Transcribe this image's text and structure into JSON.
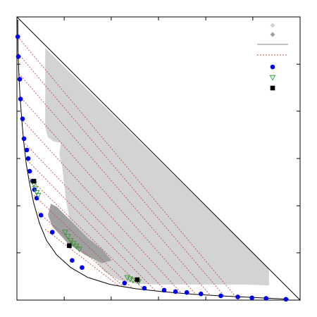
{
  "chart_data": {
    "type": "scatter",
    "xlim": [
      0,
      1
    ],
    "ylim": [
      0,
      1
    ],
    "grid": false,
    "legend_position": "top-right",
    "colors": {
      "light_region": "#d3d3d3",
      "dark_region": "#a0a0a0",
      "binodal": "#000000",
      "tie_line": "#c0504d",
      "circle_marker": "#0000ee",
      "triangle_marker": "#2e9b2e",
      "square_marker": "#000000"
    },
    "x_ticks": [
      0,
      0.167,
      0.333,
      0.5,
      0.667,
      0.833,
      1
    ],
    "y_ticks": [
      0,
      0.167,
      0.333,
      0.5,
      0.667,
      0.833,
      1
    ],
    "triangle_boundary": [
      [
        0,
        1
      ],
      [
        1,
        0
      ],
      [
        0,
        0
      ]
    ],
    "light_region": [
      [
        0.1,
        0.89
      ],
      [
        0.1,
        0.61
      ],
      [
        0.11,
        0.575
      ],
      [
        0.13,
        0.56
      ],
      [
        0.155,
        0.555
      ],
      [
        0.15,
        0.515
      ],
      [
        0.16,
        0.47
      ],
      [
        0.172,
        0.365
      ],
      [
        0.19,
        0.26
      ],
      [
        0.24,
        0.18
      ],
      [
        0.31,
        0.1
      ],
      [
        0.36,
        0.07
      ],
      [
        0.42,
        0.058
      ],
      [
        0.5,
        0.055
      ],
      [
        0.6,
        0.055
      ],
      [
        0.7,
        0.055
      ],
      [
        0.8,
        0.055
      ],
      [
        0.89,
        0.052
      ],
      [
        0.89,
        0.11
      ],
      [
        0.1,
        0.89
      ]
    ],
    "dark_region": [
      [
        0.12,
        0.34
      ],
      [
        0.14,
        0.33
      ],
      [
        0.19,
        0.28
      ],
      [
        0.25,
        0.22
      ],
      [
        0.3,
        0.18
      ],
      [
        0.335,
        0.14
      ],
      [
        0.3,
        0.13
      ],
      [
        0.24,
        0.16
      ],
      [
        0.18,
        0.2
      ],
      [
        0.125,
        0.26
      ],
      [
        0.11,
        0.3
      ],
      [
        0.12,
        0.34
      ]
    ],
    "binodal": [
      [
        0.003,
        0.99
      ],
      [
        0.004,
        0.88
      ],
      [
        0.007,
        0.8
      ],
      [
        0.011,
        0.72
      ],
      [
        0.017,
        0.64
      ],
      [
        0.024,
        0.56
      ],
      [
        0.033,
        0.48
      ],
      [
        0.045,
        0.41
      ],
      [
        0.06,
        0.34
      ],
      [
        0.08,
        0.27
      ],
      [
        0.105,
        0.21
      ],
      [
        0.14,
        0.16
      ],
      [
        0.19,
        0.115
      ],
      [
        0.25,
        0.08
      ],
      [
        0.33,
        0.055
      ],
      [
        0.42,
        0.04
      ],
      [
        0.52,
        0.029
      ],
      [
        0.62,
        0.021
      ],
      [
        0.72,
        0.015
      ],
      [
        0.82,
        0.01
      ],
      [
        0.9,
        0.006
      ],
      [
        0.96,
        0.003
      ]
    ],
    "tie_lines": [
      {
        "x1": 0.003,
        "y1": 0.93,
        "x2": 0.77,
        "y2": 0.015
      },
      {
        "x1": 0.005,
        "y1": 0.87,
        "x2": 0.73,
        "y2": 0.017
      },
      {
        "x1": 0.007,
        "y1": 0.8,
        "x2": 0.68,
        "y2": 0.02
      },
      {
        "x1": 0.01,
        "y1": 0.72,
        "x2": 0.63,
        "y2": 0.022
      },
      {
        "x1": 0.015,
        "y1": 0.64,
        "x2": 0.58,
        "y2": 0.025
      },
      {
        "x1": 0.022,
        "y1": 0.56,
        "x2": 0.53,
        "y2": 0.028
      },
      {
        "x1": 0.03,
        "y1": 0.5,
        "x2": 0.49,
        "y2": 0.032
      },
      {
        "x1": 0.045,
        "y1": 0.43,
        "x2": 0.45,
        "y2": 0.036
      },
      {
        "x1": 0.06,
        "y1": 0.37,
        "x2": 0.41,
        "y2": 0.04
      },
      {
        "x1": 0.075,
        "y1": 0.31,
        "x2": 0.38,
        "y2": 0.045
      },
      {
        "x1": 0.1,
        "y1": 0.25,
        "x2": 0.36,
        "y2": 0.05
      }
    ],
    "circle_markers": [
      [
        0.003,
        0.93
      ],
      [
        0.005,
        0.86
      ],
      [
        0.01,
        0.78
      ],
      [
        0.013,
        0.71
      ],
      [
        0.02,
        0.64
      ],
      [
        0.025,
        0.57
      ],
      [
        0.035,
        0.53
      ],
      [
        0.04,
        0.5
      ],
      [
        0.045,
        0.455
      ],
      [
        0.055,
        0.42
      ],
      [
        0.062,
        0.39
      ],
      [
        0.07,
        0.36
      ],
      [
        0.085,
        0.3
      ],
      [
        0.125,
        0.24
      ],
      [
        0.195,
        0.14
      ],
      [
        0.23,
        0.115
      ],
      [
        0.38,
        0.06
      ],
      [
        0.45,
        0.042
      ],
      [
        0.52,
        0.035
      ],
      [
        0.56,
        0.03
      ],
      [
        0.6,
        0.027
      ],
      [
        0.65,
        0.022
      ],
      [
        0.72,
        0.015
      ],
      [
        0.78,
        0.011
      ],
      [
        0.83,
        0.008
      ],
      [
        0.88,
        0.006
      ],
      [
        0.95,
        0.003
      ]
    ],
    "triangle_markers": [
      [
        0.06,
        0.41
      ],
      [
        0.065,
        0.395
      ],
      [
        0.07,
        0.38
      ],
      [
        0.075,
        0.37
      ],
      [
        0.17,
        0.24
      ],
      [
        0.18,
        0.225
      ],
      [
        0.19,
        0.21
      ],
      [
        0.2,
        0.2
      ],
      [
        0.21,
        0.19
      ],
      [
        0.22,
        0.18
      ],
      [
        0.39,
        0.08
      ],
      [
        0.4,
        0.075
      ],
      [
        0.41,
        0.07
      ],
      [
        0.43,
        0.065
      ]
    ],
    "square_markers": [
      [
        0.06,
        0.42
      ],
      [
        0.185,
        0.192
      ],
      [
        0.425,
        0.072
      ]
    ],
    "legend_entries": [
      {
        "symbol": "diamond-light",
        "label": ""
      },
      {
        "symbol": "diamond-dark",
        "label": ""
      },
      {
        "symbol": "solid-line",
        "label": ""
      },
      {
        "symbol": "dotted-red-line",
        "label": ""
      },
      {
        "symbol": "blue-circle",
        "label": ""
      },
      {
        "symbol": "green-triangle",
        "label": ""
      },
      {
        "symbol": "black-square",
        "label": ""
      }
    ]
  }
}
